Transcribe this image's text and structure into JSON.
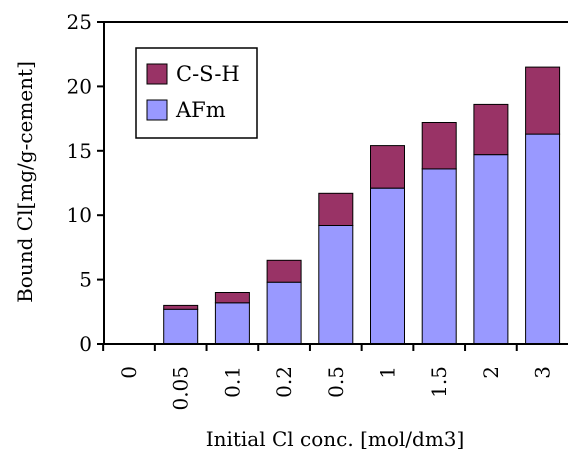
{
  "colors": {
    "csh": "#993366",
    "afm": "#9999ff",
    "axis": "#000000",
    "background": "#ffffff"
  },
  "chart_data": {
    "type": "bar",
    "stacked": true,
    "categories": [
      "0",
      "0.05",
      "0.1",
      "0.2",
      "0.5",
      "1",
      "1.5",
      "2",
      "3"
    ],
    "series": [
      {
        "name": "AFm",
        "values": [
          0,
          2.7,
          3.2,
          4.8,
          9.2,
          12.1,
          13.6,
          14.7,
          16.3
        ]
      },
      {
        "name": "C-S-H",
        "values": [
          0,
          0.3,
          0.8,
          1.7,
          2.5,
          3.3,
          3.6,
          3.9,
          5.2
        ]
      }
    ],
    "xlabel": "Initial Cl conc.  [mol/dm3]",
    "ylabel": "Bound Cl[mg/g-cement]",
    "ylim": [
      0,
      25
    ],
    "yticks": [
      "0",
      "5",
      "10",
      "15",
      "20",
      "25"
    ],
    "legend": {
      "position": "top-left",
      "items": [
        "C-S-H",
        "AFm"
      ]
    },
    "grid": false
  }
}
